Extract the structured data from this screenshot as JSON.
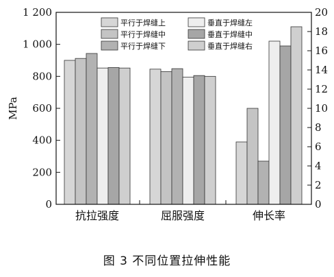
{
  "caption": "图 3    不同位置拉伸性能",
  "chart_data": {
    "type": "bar",
    "categories": [
      "抗拉强度",
      "屈服强度",
      "伸长率"
    ],
    "ylabel": "MPa",
    "y_left": {
      "lim": [
        0,
        1200
      ],
      "ticks": [
        0,
        200,
        400,
        600,
        800,
        1000,
        1200
      ],
      "tick_labels": [
        "0",
        "200",
        "400",
        "600",
        "800",
        "1 000",
        "1 200"
      ]
    },
    "y_right": {
      "lim": [
        0,
        20
      ],
      "ticks": [
        0,
        2,
        4,
        6,
        8,
        10,
        12,
        14,
        16,
        18,
        20
      ],
      "tick_labels": [
        "0",
        "2",
        "4",
        "6",
        "8",
        "10",
        "12",
        "14",
        "16",
        "18",
        "20"
      ],
      "applies_to": "伸长率"
    },
    "series": [
      {
        "name": "平行于焊缝上",
        "color": "#d6d6d6",
        "values": [
          900,
          845,
          6.5
        ]
      },
      {
        "name": "平行于焊缝中",
        "color": "#c4c4c4",
        "values": [
          912,
          830,
          10.0
        ]
      },
      {
        "name": "平行于焊缝下",
        "color": "#b2b2b2",
        "values": [
          943,
          848,
          4.5
        ]
      },
      {
        "name": "垂直于焊缝左",
        "color": "#eeeeee",
        "values": [
          852,
          795,
          17.0
        ]
      },
      {
        "name": "垂直于焊缝中",
        "color": "#a6a6a6",
        "values": [
          855,
          805,
          16.5
        ]
      },
      {
        "name": "垂直于焊缝右",
        "color": "#cfcfcf",
        "values": [
          852,
          800,
          18.5
        ]
      }
    ],
    "legend_position": "top-right",
    "grid": false
  }
}
